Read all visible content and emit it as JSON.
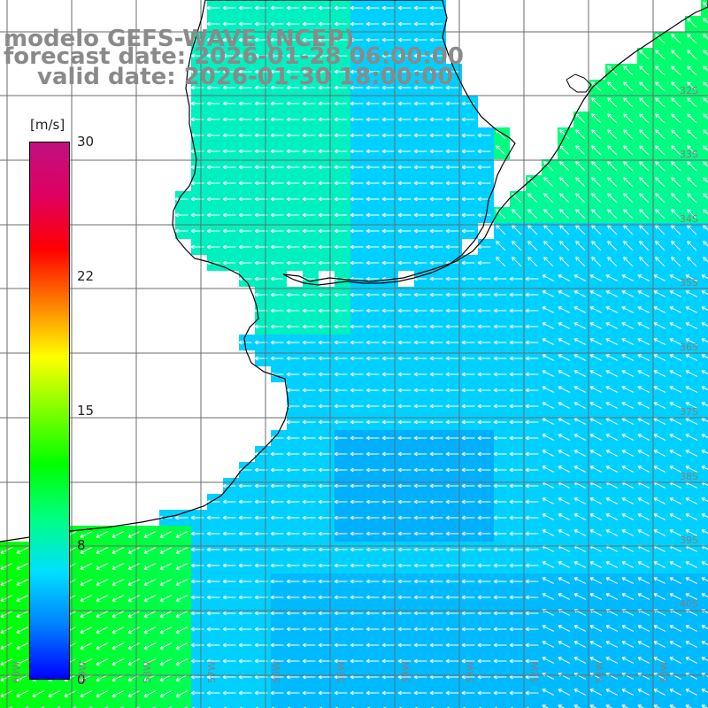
{
  "titles": {
    "model": "modelo GEFS-WAVE (NCEP)",
    "forecast": "forecast date: 2026-01-28 06:00:00",
    "valid": "valid date: 2026-01-30 18:00:00"
  },
  "colorbar": {
    "unit": "[m/s]",
    "ticks": [
      {
        "label": "30",
        "value": 30
      },
      {
        "label": "22",
        "value": 22
      },
      {
        "label": "15",
        "value": 15
      },
      {
        "label": "8",
        "value": 8
      },
      {
        "label": "0",
        "value": 0
      }
    ],
    "colors": [
      "#0000ff",
      "#0080ff",
      "#00e0ff",
      "#00ff80",
      "#00ff00",
      "#80ff00",
      "#ffff00",
      "#ff8000",
      "#ff0000",
      "#e00060",
      "#c01080"
    ]
  },
  "lat_labels": [
    "32S",
    "33S",
    "34S",
    "35S",
    "36S",
    "37S",
    "38S",
    "39S",
    "40S"
  ],
  "lon_labels": [
    "60W",
    "59W",
    "58W",
    "57W",
    "56W",
    "55W",
    "54W",
    "53W",
    "52W",
    "51W",
    "50W"
  ],
  "chart_data": {
    "type": "heatmap",
    "variable": "wind speed",
    "unit": "m/s",
    "lat_range": [
      -42,
      -30
    ],
    "lon_range": [
      -61,
      -50
    ],
    "value_range": [
      0,
      30
    ],
    "dominant_direction": "from east / southeast (arrows point west and northwest)",
    "typical_values": {
      "open_ocean_east": 7,
      "shelf_center": 6,
      "southwest_coast": 10,
      "northeast_coast": 9
    }
  }
}
